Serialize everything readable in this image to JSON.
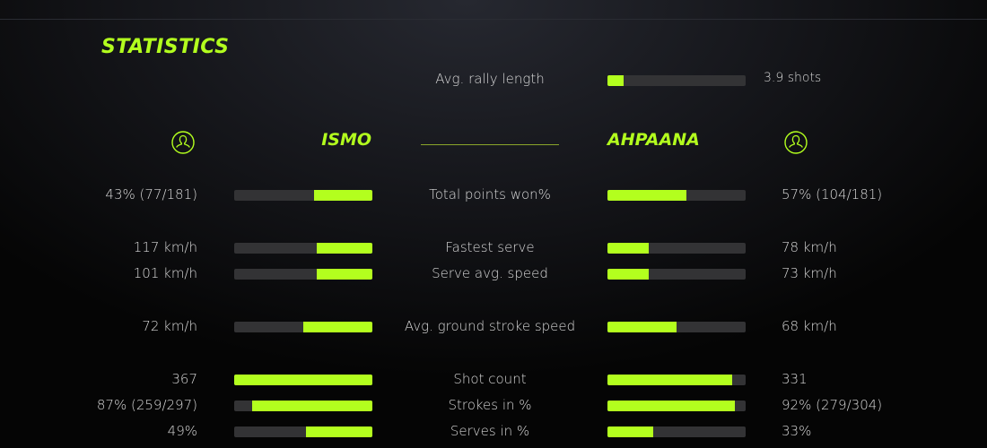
{
  "accent": "#b3ff1e",
  "title": "STATISTICS",
  "rally": {
    "label": "Avg. rally length",
    "value": "3.9 shots",
    "fraction": 0.12
  },
  "players": {
    "left": {
      "name": "ISMO",
      "icon": "user-circle-icon"
    },
    "right": {
      "name": "AHPAANA",
      "icon": "user-circle-icon"
    }
  },
  "stats": [
    {
      "label": "Total points won%",
      "left": "43% (77/181)",
      "right": "57% (104/181)",
      "left_fraction": 0.42,
      "right_fraction": 0.57
    },
    {
      "label": "Fastest serve",
      "left": "117 km/h",
      "right": "78 km/h",
      "left_fraction": 0.4,
      "right_fraction": 0.3
    },
    {
      "label": "Serve avg. speed",
      "left": "101 km/h",
      "right": "73 km/h",
      "left_fraction": 0.4,
      "right_fraction": 0.3
    },
    {
      "label": "Avg. ground stroke speed",
      "left": "72 km/h",
      "right": "68 km/h",
      "left_fraction": 0.5,
      "right_fraction": 0.5
    },
    {
      "label": "Shot count",
      "left": "367",
      "right": "331",
      "left_fraction": 1.0,
      "right_fraction": 0.9
    },
    {
      "label": "Strokes in %",
      "left": "87% (259/297)",
      "right": "92% (279/304)",
      "left_fraction": 0.87,
      "right_fraction": 0.92
    },
    {
      "label": "Serves in %",
      "left": "49%",
      "right": "33%",
      "left_fraction": 0.48,
      "right_fraction": 0.33
    }
  ]
}
